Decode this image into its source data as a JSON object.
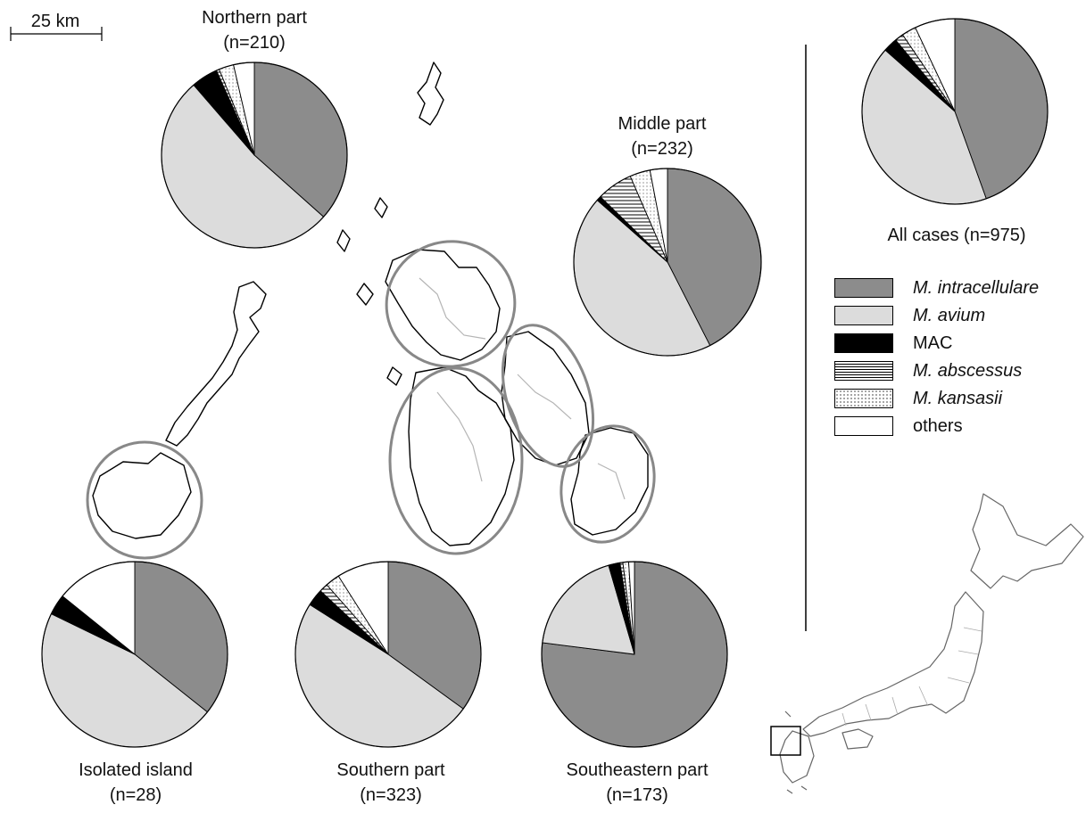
{
  "scale_bar": {
    "label": "25 km"
  },
  "legend": [
    {
      "key": "intracellulare",
      "label": "M. intracellulare",
      "italic": true,
      "fill": "#8c8c8c"
    },
    {
      "key": "avium",
      "label": "M. avium",
      "italic": true,
      "fill": "#dcdcdc"
    },
    {
      "key": "mac",
      "label": "MAC",
      "italic": false,
      "fill": "#000000"
    },
    {
      "key": "abscessus",
      "label": "M. abscessus",
      "italic": true,
      "fill": "hatch"
    },
    {
      "key": "kansasii",
      "label": "M. kansasii",
      "italic": true,
      "fill": "dots"
    },
    {
      "key": "others",
      "label": "others",
      "italic": false,
      "fill": "#ffffff"
    }
  ],
  "chart_data": [
    {
      "type": "pie",
      "title": "Northern part",
      "subtitle": "(n=210)",
      "categories": [
        "M. intracellulare",
        "M. avium",
        "MAC",
        "M. abscessus",
        "M. kansasii",
        "others"
      ],
      "values": [
        35.5,
        50.5,
        4.5,
        0.5,
        2.5,
        3.5
      ]
    },
    {
      "type": "pie",
      "title": "Middle part",
      "subtitle": "(n=232)",
      "categories": [
        "M. intracellulare",
        "M. avium",
        "MAC",
        "M. abscessus",
        "M. kansasii",
        "others"
      ],
      "values": [
        42.5,
        44.0,
        0.8,
        6.2,
        3.5,
        3.0
      ]
    },
    {
      "type": "pie",
      "title": "All cases (n=975)",
      "subtitle": "",
      "categories": [
        "M. intracellulare",
        "M. avium",
        "MAC",
        "M. abscessus",
        "M. kansasii",
        "others"
      ],
      "values": [
        44.5,
        42.0,
        2.5,
        1.5,
        2.5,
        7.0
      ]
    },
    {
      "type": "pie",
      "title": "Isolated island",
      "subtitle": "(n=28)",
      "categories": [
        "M. intracellulare",
        "M. avium",
        "MAC",
        "M. abscessus",
        "M. kansasii",
        "others"
      ],
      "values": [
        35.7,
        46.5,
        3.6,
        0,
        0,
        14.2
      ]
    },
    {
      "type": "pie",
      "title": "Southern part",
      "subtitle": "(n=323)",
      "categories": [
        "M. intracellulare",
        "M. avium",
        "MAC",
        "M. abscessus",
        "M. kansasii",
        "others"
      ],
      "values": [
        35.0,
        49.0,
        3.0,
        1.5,
        2.5,
        9.0
      ]
    },
    {
      "type": "pie",
      "title": "Southeastern part",
      "subtitle": "(n=173)",
      "categories": [
        "M. intracellulare",
        "M. avium",
        "MAC",
        "M. abscessus",
        "M. kansasii",
        "others"
      ],
      "values": [
        77.0,
        18.5,
        2.0,
        0.5,
        1.0,
        1.0
      ]
    }
  ]
}
